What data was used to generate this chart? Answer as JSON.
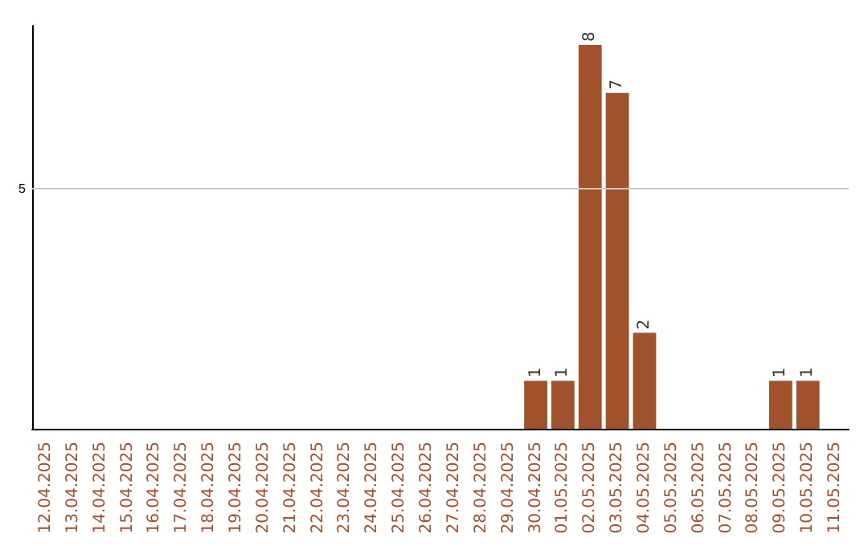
{
  "chart_data": {
    "type": "bar",
    "categories": [
      "12.04.2025",
      "13.04.2025",
      "14.04.2025",
      "15.04.2025",
      "16.04.2025",
      "17.04.2025",
      "18.04.2025",
      "19.04.2025",
      "20.04.2025",
      "21.04.2025",
      "22.04.2025",
      "23.04.2025",
      "24.04.2025",
      "25.04.2025",
      "26.04.2025",
      "27.04.2025",
      "28.04.2025",
      "29.04.2025",
      "30.04.2025",
      "01.05.2025",
      "02.05.2025",
      "03.05.2025",
      "04.05.2025",
      "05.05.2025",
      "06.05.2025",
      "07.05.2025",
      "08.05.2025",
      "09.05.2025",
      "10.05.2025",
      "11.05.2025"
    ],
    "values": [
      null,
      null,
      null,
      null,
      null,
      null,
      null,
      null,
      null,
      null,
      null,
      null,
      null,
      null,
      null,
      null,
      null,
      null,
      1,
      1,
      8,
      7,
      2,
      null,
      null,
      null,
      null,
      1,
      1,
      null
    ],
    "value_labels": [
      null,
      null,
      null,
      null,
      null,
      null,
      null,
      null,
      null,
      null,
      null,
      null,
      null,
      null,
      null,
      null,
      null,
      null,
      "1",
      "1",
      "8",
      "7",
      "2",
      null,
      null,
      null,
      null,
      "1",
      "1",
      null
    ],
    "color": "#a0522d",
    "ylim": [
      0,
      8.4
    ],
    "ref_lines": [
      {
        "axis": "y",
        "value": 5,
        "label": "5",
        "color": "#cccccc"
      }
    ]
  }
}
